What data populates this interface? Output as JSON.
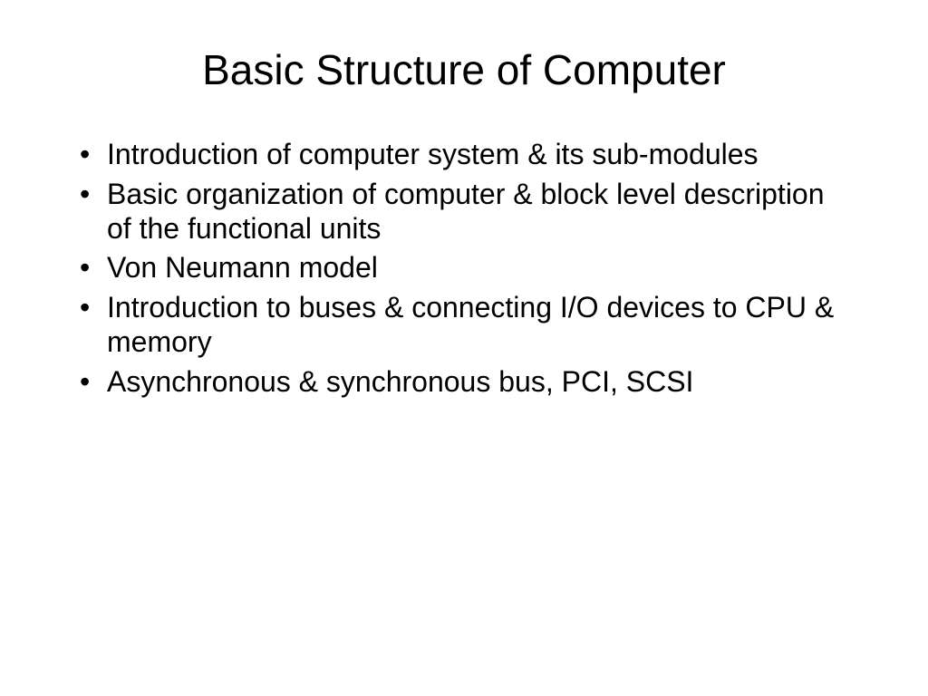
{
  "slide": {
    "title": "Basic Structure of Computer",
    "title_fontsize": 46,
    "title_color": "#000000",
    "bullets": [
      "Introduction of computer system & its sub-modules",
      "Basic organization of computer & block level description of the functional units",
      "Von Neumann model",
      "Introduction to buses & connecting I/O devices to CPU & memory",
      "Asynchronous & synchronous bus, PCI, SCSI"
    ],
    "bullet_fontsize": 32,
    "bullet_color": "#000000",
    "background_color": "#ffffff",
    "font_family": "Arial, Helvetica, sans-serif"
  }
}
